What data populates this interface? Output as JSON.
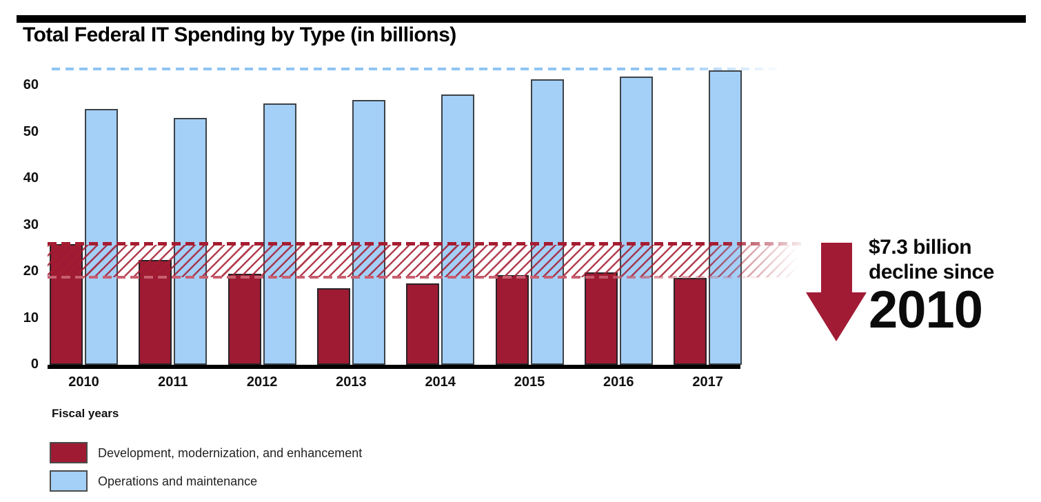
{
  "header": {
    "title": "Total Federal IT Spending by Type (in billions)"
  },
  "colors": {
    "dme_red": "#9e1b33",
    "om_blue": "#a4cff7",
    "band_red": "#a51c30",
    "refline_blue": "#8fc4f4",
    "text_black": "#0b0b0b"
  },
  "chart_data": {
    "type": "bar",
    "title": "Total Federal IT Spending by Type (in billions)",
    "xlabel": "Fiscal years",
    "ylabel": "",
    "categories": [
      "2010",
      "2011",
      "2012",
      "2013",
      "2014",
      "2015",
      "2016",
      "2017"
    ],
    "series": [
      {
        "name": "Development, modernization, and enhancement",
        "color": "#9e1b33",
        "values": [
          26.0,
          22.5,
          19.5,
          16.5,
          17.5,
          19.2,
          19.9,
          18.7
        ]
      },
      {
        "name": "Operations and maintenance",
        "color": "#a4cff7",
        "values": [
          55.0,
          53.0,
          56.2,
          56.9,
          58.1,
          61.4,
          61.9,
          63.2
        ]
      }
    ],
    "yticks": [
      0,
      10,
      20,
      30,
      40,
      50,
      60
    ],
    "ylim": [
      0,
      65
    ],
    "grid": false,
    "legend_position": "bottom-left",
    "reference_line": {
      "value": 63.2,
      "style": "dashed",
      "color": "#8fc4f4"
    },
    "decline_band": {
      "from": 26.0,
      "to": 18.7,
      "style": "hatched",
      "color": "#a51c30"
    },
    "annotation": {
      "line1": "$7.3 billion",
      "line2": "decline since",
      "line3": "2010"
    }
  },
  "legend": {
    "caption": "Fiscal years",
    "items": [
      {
        "label": "Development, modernization, and enhancement",
        "color": "#9e1b33"
      },
      {
        "label": "Operations and maintenance",
        "color": "#a4cff7"
      }
    ]
  }
}
